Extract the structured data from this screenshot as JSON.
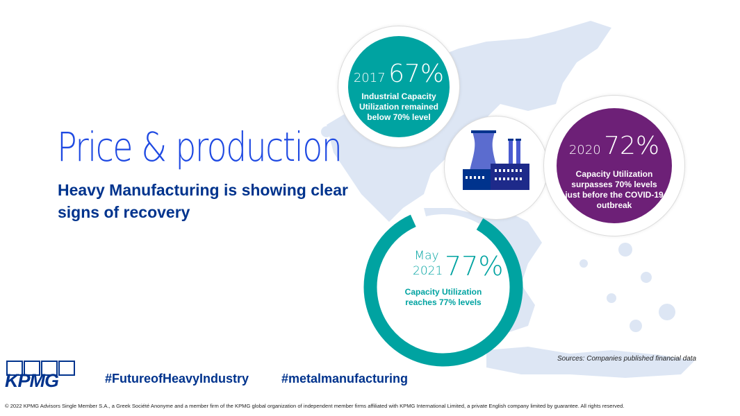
{
  "title": "Price & production",
  "subtitle": "Heavy Manufacturing is showing clear signs of recovery",
  "cards": {
    "c2017": {
      "year": "2017",
      "percent": "67%",
      "text": "Industrial Capacity Utilization remained below 70% level",
      "color": "#00a3a1"
    },
    "c2020": {
      "year": "2020",
      "percent": "72%",
      "text": "Capacity Utilization surpasses 70% levels just before the COVID-19 outbreak",
      "color": "#6d2077"
    },
    "cmay": {
      "year_line1": "May",
      "year_line2": "2021",
      "percent": "77%",
      "text": "Capacity Utilization reaches 77% levels",
      "color": "#00a3a1"
    }
  },
  "icons": {
    "factory": "factory-icon",
    "map": "greece-map",
    "logo": "kpmg-logo"
  },
  "sources": "Sources: Companies published financial data",
  "logo_text": "KPMG",
  "hashtags": [
    "#FutureofHeavyIndustry",
    "#metalmanufacturing"
  ],
  "footer": "© 2022 KPMG Advisors Single Member S.A., a Greek Société Anonyme and a member firm of the KPMG global organization of independent member firms affiliated with KPMG International Limited, a private English company limited by guarantee. All rights reserved.",
  "colors": {
    "brand_blue": "#00338d",
    "title_blue": "#1e49e2",
    "teal": "#00a3a1",
    "purple": "#6d2077",
    "map": "#dde6f4"
  }
}
